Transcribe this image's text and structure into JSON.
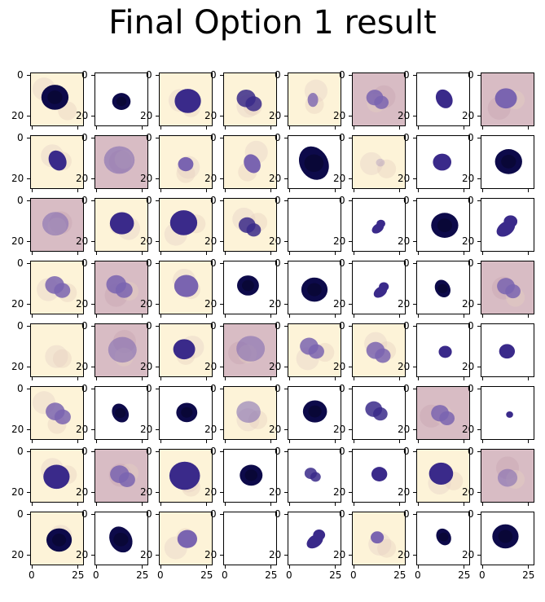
{
  "figure": {
    "title": "Final Option 1 result",
    "rows": 8,
    "cols": 8,
    "y_tick_labels": [
      "0",
      "20"
    ],
    "x_tick_labels": [
      "0",
      "25"
    ],
    "colors": {
      "nucleus_dark": "#0d0a4a",
      "nucleus_mid": "#3a2a8a",
      "nucleus_light": "#7a64b0",
      "background_cream": "#fdf3d8",
      "background_pink": "#d8bcc4"
    }
  },
  "cells": [
    {
      "bg": "cream",
      "nuc": "dark",
      "size": 0.62,
      "shape": "round"
    },
    {
      "bg": "white",
      "nuc": "dark",
      "size": 0.42,
      "shape": "round"
    },
    {
      "bg": "cream",
      "nuc": "mid",
      "size": 0.6,
      "shape": "round"
    },
    {
      "bg": "cream",
      "nuc": "mid",
      "size": 0.62,
      "shape": "lobed"
    },
    {
      "bg": "cream",
      "nuc": "light",
      "size": 0.4,
      "shape": "small"
    },
    {
      "bg": "pink",
      "nuc": "light",
      "size": 0.55,
      "shape": "lobed"
    },
    {
      "bg": "white",
      "nuc": "mid",
      "size": 0.45,
      "shape": "oval"
    },
    {
      "bg": "pink",
      "nuc": "light",
      "size": 0.5,
      "shape": "round"
    },
    {
      "bg": "cream",
      "nuc": "mid",
      "size": 0.48,
      "shape": "oval"
    },
    {
      "bg": "pink",
      "nuc": "light",
      "size": 0.7,
      "shape": "diffuse"
    },
    {
      "bg": "cream",
      "nuc": "light",
      "size": 0.35,
      "shape": "round"
    },
    {
      "bg": "cream",
      "nuc": "light",
      "size": 0.45,
      "shape": "oval"
    },
    {
      "bg": "white",
      "nuc": "dark",
      "size": 0.8,
      "shape": "oval"
    },
    {
      "bg": "cream",
      "nuc": "light",
      "size": 0.2,
      "shape": "faint"
    },
    {
      "bg": "white",
      "nuc": "mid",
      "size": 0.42,
      "shape": "round"
    },
    {
      "bg": "white",
      "nuc": "dark",
      "size": 0.62,
      "shape": "round"
    },
    {
      "bg": "pink",
      "nuc": "light",
      "size": 0.6,
      "shape": "diffuse"
    },
    {
      "bg": "cream",
      "nuc": "mid",
      "size": 0.55,
      "shape": "round"
    },
    {
      "bg": "cream",
      "nuc": "mid",
      "size": 0.62,
      "shape": "round"
    },
    {
      "bg": "cream",
      "nuc": "mid",
      "size": 0.55,
      "shape": "lobed"
    },
    {
      "bg": "white",
      "nuc": "none",
      "size": 0.0,
      "shape": "empty"
    },
    {
      "bg": "white",
      "nuc": "mid",
      "size": 0.4,
      "shape": "kidney"
    },
    {
      "bg": "white",
      "nuc": "dark",
      "size": 0.62,
      "shape": "round"
    },
    {
      "bg": "white",
      "nuc": "mid",
      "size": 0.62,
      "shape": "kidney"
    },
    {
      "bg": "cream",
      "nuc": "light",
      "size": 0.62,
      "shape": "lobed"
    },
    {
      "bg": "pink",
      "nuc": "light",
      "size": 0.65,
      "shape": "lobed"
    },
    {
      "bg": "cream",
      "nuc": "light",
      "size": 0.55,
      "shape": "round"
    },
    {
      "bg": "white",
      "nuc": "dark",
      "size": 0.5,
      "shape": "round"
    },
    {
      "bg": "white",
      "nuc": "dark",
      "size": 0.6,
      "shape": "round"
    },
    {
      "bg": "white",
      "nuc": "mid",
      "size": 0.45,
      "shape": "kidney"
    },
    {
      "bg": "white",
      "nuc": "dark",
      "size": 0.42,
      "shape": "oval"
    },
    {
      "bg": "pink",
      "nuc": "light",
      "size": 0.58,
      "shape": "lobed"
    },
    {
      "bg": "cream",
      "nuc": "none",
      "size": 0.0,
      "shape": "empty"
    },
    {
      "bg": "pink",
      "nuc": "light",
      "size": 0.65,
      "shape": "diffuse"
    },
    {
      "bg": "cream",
      "nuc": "mid",
      "size": 0.5,
      "shape": "round"
    },
    {
      "bg": "pink",
      "nuc": "light",
      "size": 0.65,
      "shape": "diffuse"
    },
    {
      "bg": "cream",
      "nuc": "light",
      "size": 0.6,
      "shape": "lobed"
    },
    {
      "bg": "cream",
      "nuc": "light",
      "size": 0.6,
      "shape": "lobed"
    },
    {
      "bg": "white",
      "nuc": "mid",
      "size": 0.3,
      "shape": "round"
    },
    {
      "bg": "white",
      "nuc": "mid",
      "size": 0.36,
      "shape": "round"
    },
    {
      "bg": "cream",
      "nuc": "light",
      "size": 0.62,
      "shape": "lobed"
    },
    {
      "bg": "white",
      "nuc": "dark",
      "size": 0.45,
      "shape": "oval"
    },
    {
      "bg": "white",
      "nuc": "dark",
      "size": 0.48,
      "shape": "round"
    },
    {
      "bg": "cream",
      "nuc": "light",
      "size": 0.55,
      "shape": "diffuse"
    },
    {
      "bg": "white",
      "nuc": "dark",
      "size": 0.55,
      "shape": "round"
    },
    {
      "bg": "white",
      "nuc": "mid",
      "size": 0.55,
      "shape": "lobed"
    },
    {
      "bg": "pink",
      "nuc": "light",
      "size": 0.58,
      "shape": "lobed"
    },
    {
      "bg": "white",
      "nuc": "mid",
      "size": 0.16,
      "shape": "round"
    },
    {
      "bg": "cream",
      "nuc": "mid",
      "size": 0.6,
      "shape": "round"
    },
    {
      "bg": "pink",
      "nuc": "light",
      "size": 0.62,
      "shape": "lobed"
    },
    {
      "bg": "cream",
      "nuc": "mid",
      "size": 0.7,
      "shape": "round"
    },
    {
      "bg": "white",
      "nuc": "dark",
      "size": 0.52,
      "shape": "round"
    },
    {
      "bg": "white",
      "nuc": "mid",
      "size": 0.4,
      "shape": "lobed"
    },
    {
      "bg": "white",
      "nuc": "mid",
      "size": 0.36,
      "shape": "round"
    },
    {
      "bg": "cream",
      "nuc": "mid",
      "size": 0.55,
      "shape": "round"
    },
    {
      "bg": "pink",
      "nuc": "light",
      "size": 0.45,
      "shape": "diffuse"
    },
    {
      "bg": "cream",
      "nuc": "dark",
      "size": 0.58,
      "shape": "round"
    },
    {
      "bg": "white",
      "nuc": "dark",
      "size": 0.62,
      "shape": "oval"
    },
    {
      "bg": "cream",
      "nuc": "light",
      "size": 0.45,
      "shape": "round"
    },
    {
      "bg": "white",
      "nuc": "none",
      "size": 0.0,
      "shape": "empty"
    },
    {
      "bg": "white",
      "nuc": "mid",
      "size": 0.55,
      "shape": "kidney"
    },
    {
      "bg": "cream",
      "nuc": "light",
      "size": 0.3,
      "shape": "round"
    },
    {
      "bg": "white",
      "nuc": "dark",
      "size": 0.4,
      "shape": "oval"
    },
    {
      "bg": "white",
      "nuc": "dark",
      "size": 0.6,
      "shape": "round"
    }
  ]
}
